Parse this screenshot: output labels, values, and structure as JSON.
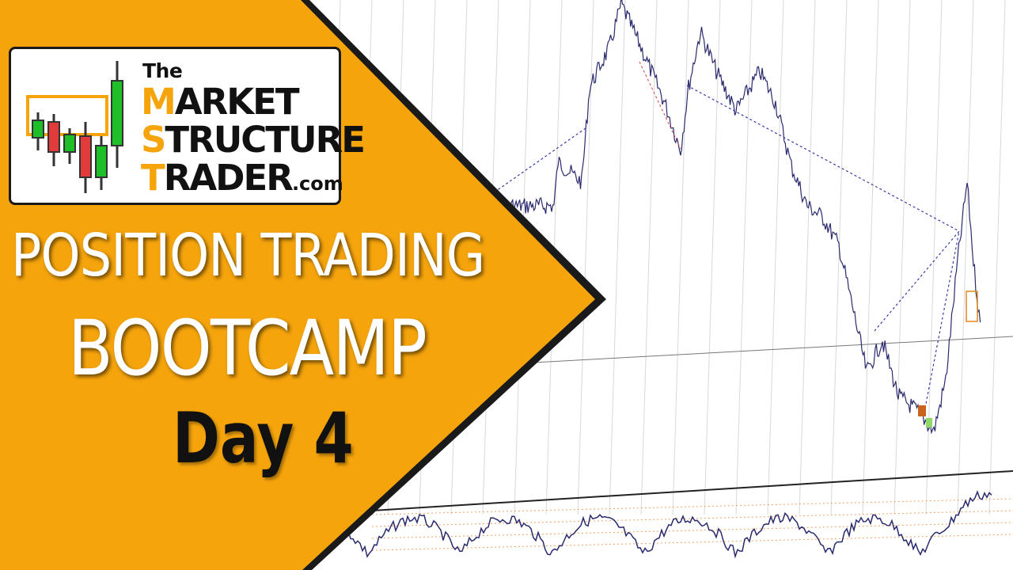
{
  "colors": {
    "banner_orange": "#f5a40c",
    "banner_edge": "#1a1a1a",
    "price_line": "#2a2a6e",
    "trend_dotted": "#3a3aa8",
    "candle_green": "#1fbf2a",
    "candle_red": "#e23b3b",
    "logo_box_orange": "#f5a40c"
  },
  "logo": {
    "the": "The",
    "words": [
      {
        "initial": "M",
        "rest": "ARKET",
        "suffix": ""
      },
      {
        "initial": "S",
        "rest": "TRUCTURE",
        "suffix": ""
      },
      {
        "initial": "T",
        "rest": "RADER",
        "suffix": ".com"
      }
    ]
  },
  "headline": {
    "line1": "POSITION TRADING",
    "line2": "BOOTCAMP",
    "line3": "Day 4"
  },
  "icons": [
    "candlestick-logo-icon"
  ]
}
